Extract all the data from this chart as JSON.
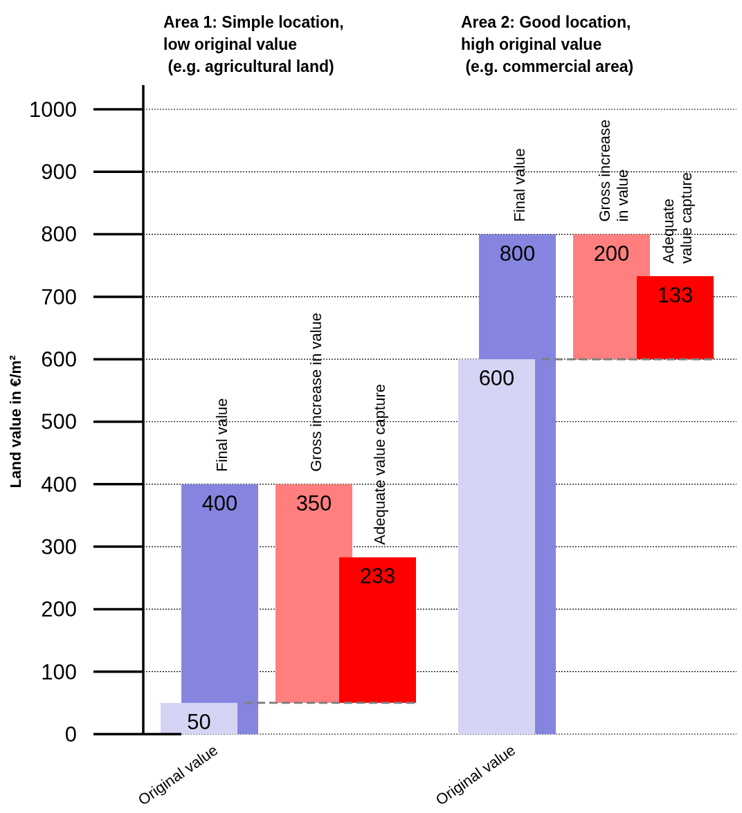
{
  "chart_data": {
    "type": "bar",
    "categories": [
      "Original value",
      "Final value",
      "Gross increase in value",
      "Adequate value capture",
      "Original value",
      "Final value",
      "Gross increase\nin value",
      "Adequate\nvalue capture"
    ],
    "values": [
      50,
      400,
      350,
      233,
      600,
      800,
      200,
      133
    ],
    "base": [
      0,
      0,
      50,
      50,
      0,
      0,
      600,
      600
    ],
    "colors": [
      "#d6d4f4",
      "#8585e0",
      "#ff7f7f",
      "#ff0000",
      "#d6d4f4",
      "#8585e0",
      "#ff7f7f",
      "#ff0000"
    ],
    "data_labels": true,
    "ylabel": "Land value in €/m²",
    "ylim": [
      0,
      1000
    ],
    "yticks": [
      0,
      100,
      200,
      300,
      400,
      500,
      600,
      700,
      800,
      900,
      1000
    ],
    "grid": "y",
    "ref_lines": [
      {
        "axis": "y",
        "value": 50,
        "color": "#808080",
        "line_style": "dashed"
      },
      {
        "axis": "y",
        "value": 600,
        "color": "#808080",
        "line_style": "dashed"
      }
    ],
    "annotations": [
      "Area 1: Simple location,\nlow original value\n (e.g. agricultural land)",
      "Area 2: Good location,\nhigh original value\n (e.g. commercial area)"
    ]
  }
}
